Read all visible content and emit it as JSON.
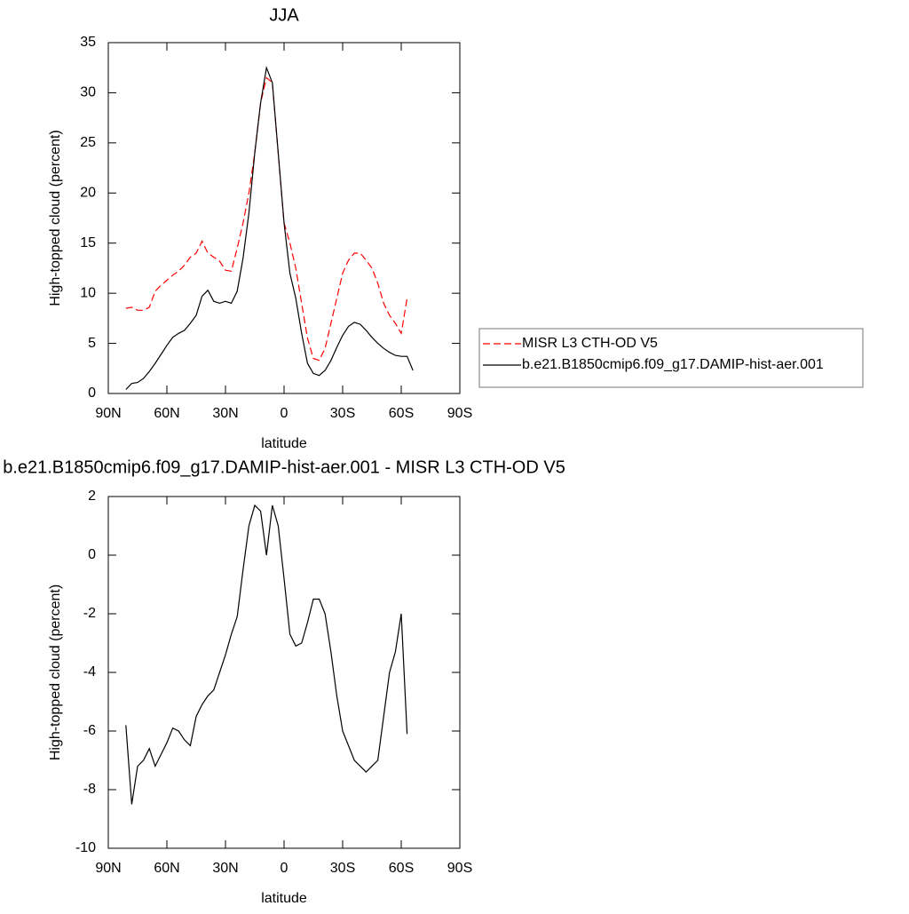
{
  "chart_data": [
    {
      "type": "line",
      "title": "JJA",
      "xlabel": "latitude",
      "ylabel": "High-topped cloud (percent)",
      "x": [
        81,
        78,
        75,
        72,
        69,
        66,
        63,
        60,
        57,
        54,
        51,
        48,
        45,
        42,
        39,
        36,
        33,
        30,
        27,
        24,
        21,
        18,
        15,
        12,
        9,
        6,
        3,
        0,
        -3,
        -6,
        -9,
        -12,
        -15,
        -18,
        -21,
        -24,
        -27,
        -30,
        -33,
        -36,
        -39,
        -42,
        -45,
        -48,
        -51,
        -54,
        -57,
        -60,
        -63,
        -66
      ],
      "series": [
        {
          "name": "MISR L3 CTH-OD V5",
          "color": "#ff0000",
          "dashed": true,
          "values": [
            8.5,
            8.6,
            8.3,
            8.3,
            8.6,
            10.2,
            10.8,
            11.3,
            11.8,
            12.2,
            12.8,
            13.6,
            14.0,
            15.2,
            14.0,
            13.6,
            13.2,
            12.3,
            12.2,
            14.5,
            17,
            20,
            24,
            29,
            31.5,
            31,
            24,
            17,
            15,
            12.5,
            9,
            5.5,
            3.5,
            3.3,
            4.5,
            7,
            9.5,
            12,
            13.3,
            14,
            14,
            13.3,
            12.5,
            11,
            9,
            7.8,
            7,
            6,
            9.5,
            null
          ]
        },
        {
          "name": "b.e21.B1850cmip6.f09_g17.DAMIP-hist-aer.001",
          "color": "#000000",
          "dashed": false,
          "values": [
            0.4,
            1.0,
            1.1,
            1.5,
            2.2,
            3.0,
            3.9,
            4.8,
            5.6,
            6.0,
            6.3,
            7.0,
            7.8,
            9.7,
            10.3,
            9.2,
            9.0,
            9.2,
            9.0,
            10.2,
            13.5,
            18,
            24,
            29,
            32.5,
            31,
            24,
            17,
            12,
            9.5,
            6,
            3,
            2.0,
            1.8,
            2.3,
            3.3,
            4.6,
            5.8,
            6.7,
            7.1,
            6.9,
            6.3,
            5.6,
            5.0,
            4.5,
            4.1,
            3.8,
            3.7,
            3.7,
            2.3
          ]
        }
      ],
      "xlim": [
        90,
        -90
      ],
      "xticks": [
        {
          "value": 90,
          "label": "90N"
        },
        {
          "value": 60,
          "label": "60N"
        },
        {
          "value": 30,
          "label": "30N"
        },
        0,
        {
          "value": -30,
          "label": "30S"
        },
        {
          "value": -60,
          "label": "60S"
        },
        {
          "value": -90,
          "label": "90S"
        }
      ],
      "ylim": [
        0,
        35
      ],
      "yticks": [
        0,
        5,
        10,
        15,
        20,
        25,
        30,
        35
      ],
      "legend": "right"
    },
    {
      "type": "line",
      "title": "b.e21.B1850cmip6.f09_g17.DAMIP-hist-aer.001 - MISR L3 CTH-OD V5",
      "xlabel": "latitude",
      "ylabel": "High-topped cloud (percent)",
      "x": [
        81,
        78,
        75,
        72,
        69,
        66,
        63,
        60,
        57,
        54,
        51,
        48,
        45,
        42,
        39,
        36,
        33,
        30,
        27,
        24,
        21,
        18,
        15,
        12,
        9,
        6,
        3,
        0,
        -3,
        -6,
        -9,
        -12,
        -15,
        -18,
        -21,
        -24,
        -27,
        -30,
        -33,
        -36,
        -39,
        -42,
        -45,
        -48,
        -51,
        -54,
        -57,
        -60,
        -63,
        -66
      ],
      "series": [
        {
          "color": "#000000",
          "dashed": false,
          "values": [
            -5.8,
            -8.5,
            -7.2,
            -7.0,
            -6.6,
            -7.2,
            -6.8,
            -6.4,
            -5.9,
            -6.0,
            -6.3,
            -6.5,
            -5.5,
            -5.1,
            -4.8,
            -4.6,
            -4.0,
            -3.4,
            -2.7,
            -2.1,
            -0.5,
            1.0,
            1.7,
            1.5,
            0.0,
            1.7,
            1.0,
            -0.8,
            -2.7,
            -3.1,
            -3.0,
            -2.3,
            -1.5,
            -1.5,
            -2.0,
            -3.3,
            -4.8,
            -6.0,
            -6.5,
            -7.0,
            -7.2,
            -7.4,
            -7.2,
            -7.0,
            -5.5,
            -4.0,
            -3.3,
            -2.0,
            -6.1,
            null
          ]
        }
      ],
      "xlim": [
        90,
        -90
      ],
      "xticks": [
        {
          "value": 90,
          "label": "90N"
        },
        {
          "value": 60,
          "label": "60N"
        },
        {
          "value": 30,
          "label": "30N"
        },
        0,
        {
          "value": -30,
          "label": "30S"
        },
        {
          "value": -60,
          "label": "60S"
        },
        {
          "value": -90,
          "label": "90S"
        }
      ],
      "ylim": [
        -10,
        2
      ],
      "yticks": [
        -10,
        -8,
        -6,
        -4,
        -2,
        0,
        2
      ]
    }
  ]
}
